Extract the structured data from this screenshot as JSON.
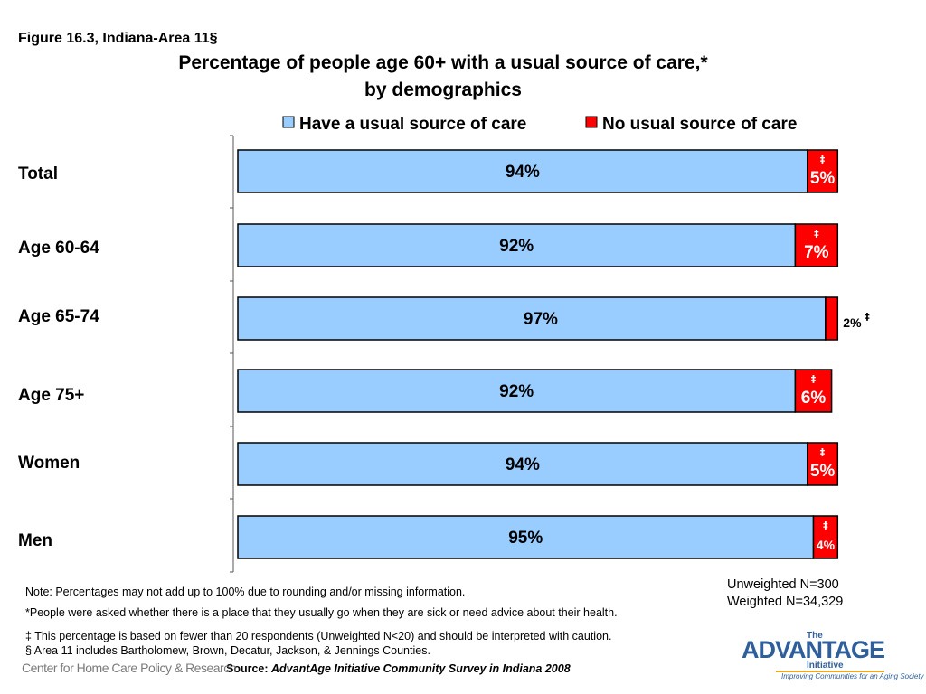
{
  "figure_label": "Figure 16.3, Indiana-Area 11§",
  "chart_data": {
    "type": "bar",
    "orientation": "horizontal",
    "stacked": true,
    "title": "Percentage of people age 60+ with a usual source of care,* by demographics",
    "title_line1": "Percentage of people age 60+ with a usual source of care,*",
    "title_line2": "by demographics",
    "categories": [
      "Total",
      "Age 60-64",
      "Age 65-74",
      "Age 75+",
      "Women",
      "Men"
    ],
    "series": [
      {
        "name": "Have a usual source of care",
        "color": "#99ccff",
        "values": [
          94,
          92,
          97,
          92,
          94,
          95
        ],
        "labels": [
          "94%",
          "92%",
          "97%",
          "92%",
          "94%",
          "95%"
        ]
      },
      {
        "name": "No usual source of care",
        "color": "#ff0000",
        "values": [
          5,
          7,
          2,
          6,
          5,
          4
        ],
        "labels": [
          "5%",
          "7%",
          "2%",
          "6%",
          "5%",
          "4%"
        ]
      }
    ],
    "dagger_marks": [
      "‡",
      "‡",
      "‡",
      "‡",
      "‡",
      "‡"
    ],
    "xlim": [
      0,
      100
    ],
    "legend_position": "top",
    "grid": false
  },
  "notes": {
    "note1": "Note: Percentages may not add up to 100% due to rounding and/or missing information.",
    "note2": "*People were asked whether there is a place that they usually go when they are sick or need advice about their health.",
    "note3": "‡ This percentage is based on fewer than 20 respondents (Unweighted N<20) and should be interpreted with caution.",
    "note4": "§ Area 11 includes Bartholomew, Brown, Decatur, Jackson, & Jennings Counties."
  },
  "sample": {
    "unweighted": "Unweighted N=300",
    "weighted": "Weighted N=34,329"
  },
  "source": {
    "prefix": "Source: ",
    "text": "AdvantAge Initiative Community Survey in Indiana 2008"
  },
  "logos": {
    "left": "Center for Home Care Policy & Research",
    "right_the": "The",
    "right_brand": "ADVANTAGE",
    "right_initiative": "Initiative",
    "right_tagline": "Improving Communities for an Aging Society"
  }
}
